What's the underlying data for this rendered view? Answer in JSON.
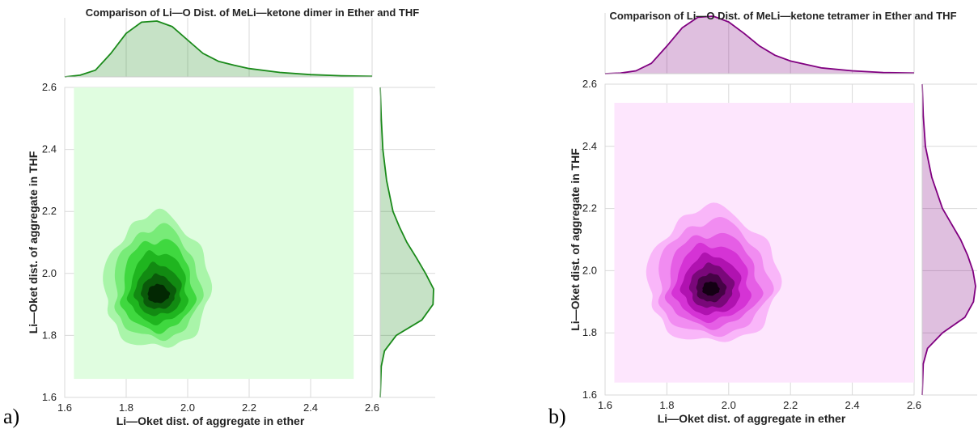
{
  "chart_data": [
    {
      "type": "kde-joint",
      "panel_label": "a)",
      "title": "Comparison of Li—O Dist. of MeLi—ketone dimer in Ether and THF",
      "xlabel": "Li—Oket dist. of aggregate in ether",
      "ylabel": "Li—Oket dist. of aggregate in THF",
      "xlim": [
        1.6,
        2.6
      ],
      "ylim": [
        1.6,
        2.6
      ],
      "xticks": [
        "1.6",
        "1.8",
        "2.0",
        "2.2",
        "2.4",
        "2.6"
      ],
      "yticks": [
        "1.6",
        "1.8",
        "2.0",
        "2.2",
        "2.4",
        "2.6"
      ],
      "grid": true,
      "color": "#1a8a1a",
      "background_fill": "#e0fde0",
      "fill_extent": {
        "x": [
          1.63,
          2.54
        ],
        "y": [
          1.66,
          2.6
        ]
      },
      "joint_peak": {
        "x": 1.9,
        "y": 1.93
      },
      "contour_levels": [
        {
          "rx": [
            0.17,
            0.17
          ],
          "ry": [
            0.17,
            0.26
          ],
          "color": "#a9f5a9"
        },
        {
          "rx": [
            0.14,
            0.14
          ],
          "ry": [
            0.14,
            0.22
          ],
          "color": "#78eb78"
        },
        {
          "rx": [
            0.115,
            0.12
          ],
          "ry": [
            0.115,
            0.18
          ],
          "color": "#3fd83f"
        },
        {
          "rx": [
            0.09,
            0.1
          ],
          "ry": [
            0.09,
            0.14
          ],
          "color": "#1fb51f"
        },
        {
          "rx": [
            0.07,
            0.08
          ],
          "ry": [
            0.065,
            0.1
          ],
          "color": "#128a12"
        },
        {
          "rx": [
            0.05,
            0.06
          ],
          "ry": [
            0.045,
            0.065
          ],
          "color": "#0a5a0a"
        },
        {
          "rx": [
            0.03,
            0.04
          ],
          "ry": [
            0.025,
            0.035
          ],
          "color": "#032803"
        }
      ],
      "marginal_x": {
        "x": [
          1.6,
          1.65,
          1.7,
          1.75,
          1.8,
          1.85,
          1.9,
          1.95,
          2.0,
          2.05,
          2.1,
          2.15,
          2.2,
          2.3,
          2.4,
          2.5,
          2.6
        ],
        "density": [
          0.0,
          0.03,
          0.12,
          0.42,
          0.78,
          0.98,
          1.0,
          0.9,
          0.66,
          0.42,
          0.28,
          0.21,
          0.15,
          0.08,
          0.04,
          0.02,
          0.01
        ]
      },
      "marginal_y": {
        "y": [
          1.6,
          1.7,
          1.75,
          1.8,
          1.85,
          1.9,
          1.95,
          2.0,
          2.05,
          2.1,
          2.15,
          2.2,
          2.3,
          2.4,
          2.5,
          2.6
        ],
        "density": [
          0.0,
          0.02,
          0.08,
          0.3,
          0.78,
          0.99,
          1.0,
          0.85,
          0.68,
          0.5,
          0.36,
          0.24,
          0.12,
          0.05,
          0.02,
          0.0
        ]
      }
    },
    {
      "type": "kde-joint",
      "panel_label": "b)",
      "title": "Comparison of Li—O Dist. of MeLi—ketone tetramer in Ether and THF",
      "xlabel": "Li—Oket dist. of aggregate in ether",
      "ylabel": "Li—Oket dist. of aggregate in THF",
      "xlim": [
        1.6,
        2.6
      ],
      "ylim": [
        1.6,
        2.6
      ],
      "xticks": [
        "1.6",
        "1.8",
        "2.0",
        "2.2",
        "2.4",
        "2.6"
      ],
      "yticks": [
        "1.6",
        "1.8",
        "2.0",
        "2.2",
        "2.4",
        "2.6"
      ],
      "grid": true,
      "color": "#800080",
      "background_fill": "#fde6fd",
      "fill_extent": {
        "x": [
          1.63,
          2.6
        ],
        "y": [
          1.64,
          2.54
        ]
      },
      "joint_peak": {
        "x": 1.94,
        "y": 1.94
      },
      "contour_levels": [
        {
          "rx": [
            0.2,
            0.22
          ],
          "ry": [
            0.17,
            0.26
          ],
          "color": "#f9b6f9"
        },
        {
          "rx": [
            0.17,
            0.19
          ],
          "ry": [
            0.145,
            0.22
          ],
          "color": "#f18cf1"
        },
        {
          "rx": [
            0.14,
            0.16
          ],
          "ry": [
            0.12,
            0.18
          ],
          "color": "#e55ee5"
        },
        {
          "rx": [
            0.115,
            0.13
          ],
          "ry": [
            0.1,
            0.145
          ],
          "color": "#d533d5"
        },
        {
          "rx": [
            0.09,
            0.1
          ],
          "ry": [
            0.08,
            0.11
          ],
          "color": "#b012b0"
        },
        {
          "rx": [
            0.065,
            0.075
          ],
          "ry": [
            0.06,
            0.08
          ],
          "color": "#7a087a"
        },
        {
          "rx": [
            0.045,
            0.05
          ],
          "ry": [
            0.04,
            0.05
          ],
          "color": "#450345"
        },
        {
          "rx": [
            0.025,
            0.03
          ],
          "ry": [
            0.02,
            0.025
          ],
          "color": "#140014"
        }
      ],
      "marginal_x": {
        "x": [
          1.6,
          1.65,
          1.7,
          1.75,
          1.8,
          1.85,
          1.9,
          1.95,
          2.0,
          2.05,
          2.1,
          2.15,
          2.2,
          2.3,
          2.4,
          2.5,
          2.6
        ],
        "density": [
          0.0,
          0.01,
          0.05,
          0.18,
          0.48,
          0.8,
          0.98,
          1.0,
          0.9,
          0.7,
          0.48,
          0.32,
          0.22,
          0.1,
          0.05,
          0.02,
          0.01
        ]
      },
      "marginal_y": {
        "y": [
          1.6,
          1.7,
          1.75,
          1.8,
          1.85,
          1.9,
          1.95,
          2.0,
          2.05,
          2.1,
          2.15,
          2.2,
          2.3,
          2.4,
          2.5,
          2.6
        ],
        "density": [
          0.0,
          0.02,
          0.1,
          0.38,
          0.8,
          0.96,
          1.0,
          0.95,
          0.85,
          0.72,
          0.55,
          0.38,
          0.18,
          0.06,
          0.02,
          0.0
        ]
      }
    }
  ]
}
